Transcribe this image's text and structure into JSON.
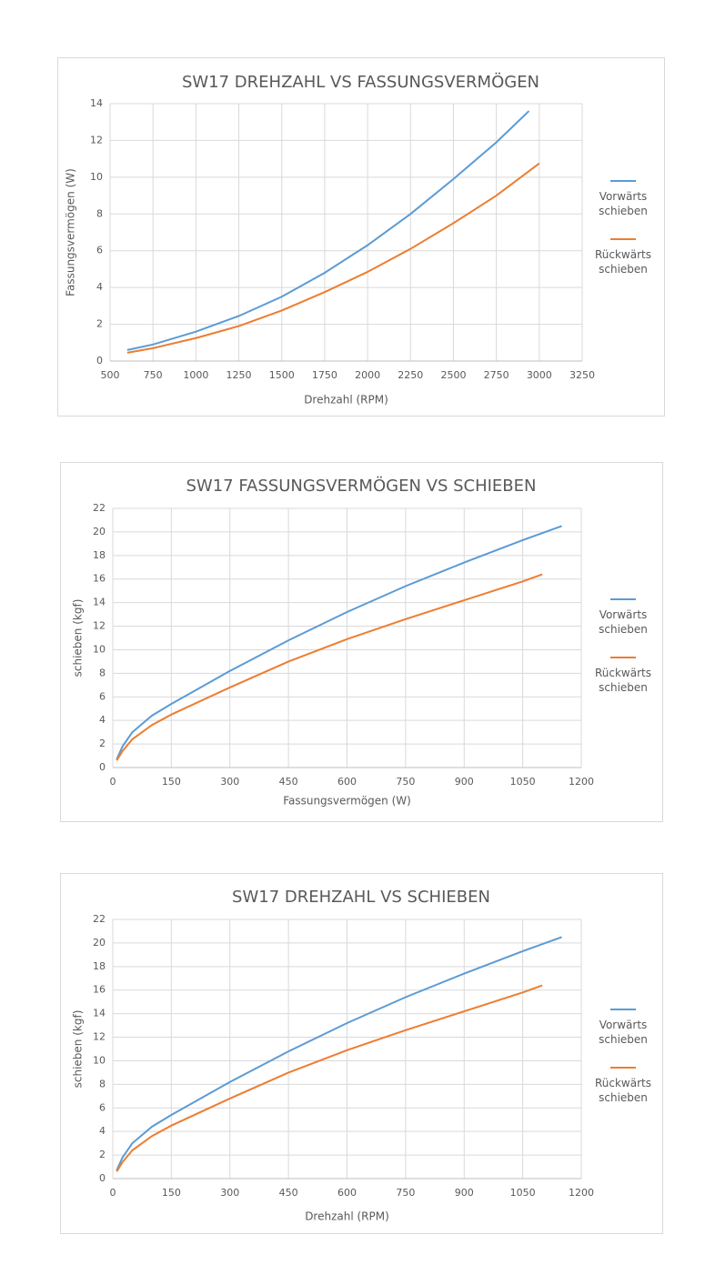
{
  "chart_data": [
    {
      "type": "line",
      "title": "SW17 DREHZAHL VS FASSUNGSVERMÖGEN",
      "x_label": "Drehzahl (RPM)",
      "y_label": "Fassungsvermögen (W)",
      "xlim": [
        500,
        3250
      ],
      "xticks": [
        500,
        750,
        1000,
        1250,
        1500,
        1750,
        2000,
        2250,
        2500,
        2750,
        3000,
        3250
      ],
      "ylim": [
        0,
        14
      ],
      "yticks": [
        0,
        2,
        4,
        6,
        8,
        10,
        12,
        14
      ],
      "grid": true,
      "legend": "right",
      "series": [
        {
          "name": "Vorwärts schieben",
          "color": "#5b9bd5",
          "x": [
            600,
            750,
            1000,
            1250,
            1500,
            1750,
            2000,
            2250,
            2500,
            2750,
            2940
          ],
          "values": [
            0.6,
            0.9,
            1.6,
            2.45,
            3.5,
            4.8,
            6.3,
            8.0,
            9.9,
            11.9,
            13.6
          ]
        },
        {
          "name": "Rückwärts schieben",
          "color": "#ed7d31",
          "x": [
            600,
            750,
            1000,
            1250,
            1500,
            1750,
            2000,
            2250,
            2500,
            2750,
            3000
          ],
          "values": [
            0.45,
            0.7,
            1.25,
            1.9,
            2.75,
            3.75,
            4.85,
            6.1,
            7.5,
            9.0,
            10.75
          ]
        }
      ]
    },
    {
      "type": "line",
      "title": "SW17 FASSUNGSVERMÖGEN VS SCHIEBEN",
      "x_label": "Fassungsvermögen (W)",
      "y_label": "schieben (kgf)",
      "xlim": [
        0,
        1200
      ],
      "xticks": [
        0,
        150,
        300,
        450,
        600,
        750,
        900,
        1050,
        1200
      ],
      "ylim": [
        0,
        22
      ],
      "yticks": [
        0,
        2,
        4,
        6,
        8,
        10,
        12,
        14,
        16,
        18,
        20,
        22
      ],
      "grid": true,
      "legend": "right",
      "series": [
        {
          "name": "Vorwärts schieben",
          "color": "#5b9bd5",
          "x": [
            10,
            25,
            50,
            100,
            150,
            300,
            450,
            600,
            750,
            900,
            1050,
            1150
          ],
          "values": [
            0.7,
            1.8,
            3.0,
            4.4,
            5.4,
            8.2,
            10.8,
            13.2,
            15.4,
            17.4,
            19.3,
            20.5
          ]
        },
        {
          "name": "Rückwärts schieben",
          "color": "#ed7d31",
          "x": [
            10,
            25,
            50,
            100,
            150,
            300,
            450,
            600,
            750,
            900,
            1050,
            1100
          ],
          "values": [
            0.6,
            1.4,
            2.4,
            3.6,
            4.5,
            6.8,
            9.0,
            10.9,
            12.6,
            14.2,
            15.8,
            16.4
          ]
        }
      ]
    },
    {
      "type": "line",
      "title": "SW17 DREHZAHL VS SCHIEBEN",
      "x_label": "Drehzahl (RPM)",
      "y_label": "schieben (kgf)",
      "xlim": [
        0,
        1200
      ],
      "xticks": [
        0,
        150,
        300,
        450,
        600,
        750,
        900,
        1050,
        1200
      ],
      "ylim": [
        0,
        22
      ],
      "yticks": [
        0,
        2,
        4,
        6,
        8,
        10,
        12,
        14,
        16,
        18,
        20,
        22
      ],
      "grid": true,
      "legend": "right",
      "series": [
        {
          "name": "Vorwärts schieben",
          "color": "#5b9bd5",
          "x": [
            10,
            25,
            50,
            100,
            150,
            300,
            450,
            600,
            750,
            900,
            1050,
            1150
          ],
          "values": [
            0.7,
            1.8,
            3.0,
            4.4,
            5.4,
            8.2,
            10.8,
            13.2,
            15.4,
            17.4,
            19.3,
            20.5
          ]
        },
        {
          "name": "Rückwärts schieben",
          "color": "#ed7d31",
          "x": [
            10,
            25,
            50,
            100,
            150,
            300,
            450,
            600,
            750,
            900,
            1050,
            1100
          ],
          "values": [
            0.6,
            1.4,
            2.4,
            3.6,
            4.5,
            6.8,
            9.0,
            10.9,
            12.6,
            14.2,
            15.8,
            16.4
          ]
        }
      ]
    }
  ]
}
